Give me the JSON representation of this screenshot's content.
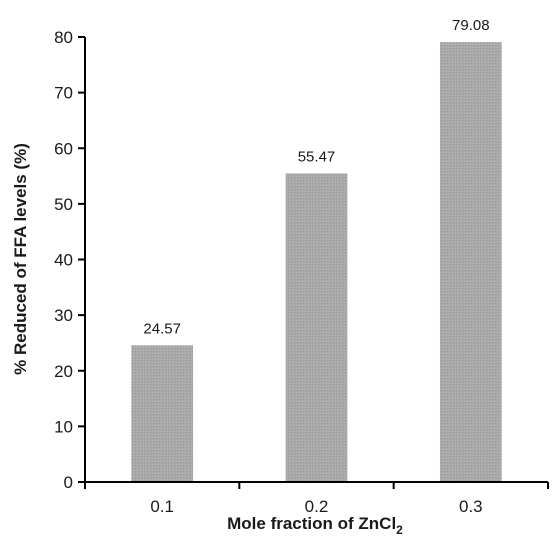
{
  "chart_data": {
    "type": "bar",
    "categories": [
      "0.1",
      "0.2",
      "0.3"
    ],
    "values": [
      24.57,
      55.47,
      79.08
    ],
    "data_labels": [
      "24.57",
      "55.47",
      "79.08"
    ],
    "xlabel": "Mole fraction of ZnCl",
    "xlabel_subscript": "2",
    "ylabel": "% Reduced of FFA levels (%)",
    "ylim": [
      0,
      80
    ],
    "yticks": [
      "0",
      "10",
      "20",
      "30",
      "40",
      "50",
      "60",
      "70",
      "80"
    ],
    "grid": false,
    "legend": "none",
    "bar_color": "#a9a9a9",
    "axis_color": "#000000"
  }
}
